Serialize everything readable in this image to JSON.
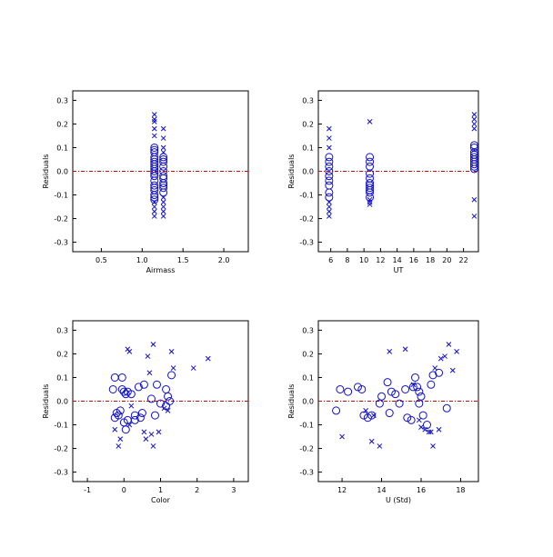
{
  "chart_data": [
    {
      "type": "scatter",
      "title": "",
      "xlabel": "Airmass",
      "ylabel": "Residuals",
      "xlim": [
        0.15,
        2.3
      ],
      "ylim": [
        -0.34,
        0.34
      ],
      "xticks": [
        0.5,
        1.0,
        1.5,
        2.0
      ],
      "xtick_labels": [
        "0.5",
        "1.0",
        "1.5",
        "2.0"
      ],
      "yticks": [
        -0.3,
        -0.2,
        -0.1,
        0.0,
        0.1,
        0.2,
        0.3
      ],
      "ytick_labels": [
        "-0.3",
        "-0.2",
        "-0.1",
        "0.0",
        "0.1",
        "0.2",
        "0.3"
      ],
      "reference_line": 0.0,
      "grid": false,
      "series": [
        {
          "marker": "circle",
          "color": "#1010c8",
          "points": [
            [
              1.15,
              0.1
            ],
            [
              1.15,
              0.09
            ],
            [
              1.15,
              0.08
            ],
            [
              1.15,
              0.06
            ],
            [
              1.15,
              0.05
            ],
            [
              1.15,
              0.04
            ],
            [
              1.15,
              0.03
            ],
            [
              1.15,
              0.02
            ],
            [
              1.15,
              0.01
            ],
            [
              1.15,
              0.0
            ],
            [
              1.15,
              -0.01
            ],
            [
              1.15,
              -0.02
            ],
            [
              1.15,
              -0.04
            ],
            [
              1.15,
              -0.06
            ],
            [
              1.15,
              -0.07
            ],
            [
              1.15,
              -0.08
            ],
            [
              1.15,
              -0.1
            ],
            [
              1.15,
              -0.11
            ],
            [
              1.15,
              -0.12
            ],
            [
              1.26,
              0.06
            ],
            [
              1.26,
              0.05
            ],
            [
              1.26,
              0.04
            ],
            [
              1.26,
              0.02
            ],
            [
              1.26,
              0.0
            ],
            [
              1.26,
              -0.02
            ],
            [
              1.26,
              -0.03
            ],
            [
              1.26,
              -0.05
            ],
            [
              1.26,
              -0.06
            ],
            [
              1.26,
              -0.07
            ],
            [
              1.26,
              -0.09
            ]
          ]
        },
        {
          "marker": "x",
          "color": "#1010c8",
          "points": [
            [
              1.15,
              0.24
            ],
            [
              1.15,
              0.22
            ],
            [
              1.15,
              0.21
            ],
            [
              1.15,
              0.18
            ],
            [
              1.15,
              0.15
            ],
            [
              1.15,
              -0.13
            ],
            [
              1.15,
              -0.15
            ],
            [
              1.15,
              -0.17
            ],
            [
              1.15,
              -0.19
            ],
            [
              1.26,
              0.18
            ],
            [
              1.26,
              0.14
            ],
            [
              1.26,
              0.1
            ],
            [
              1.26,
              0.08
            ],
            [
              1.26,
              -0.11
            ],
            [
              1.26,
              -0.13
            ],
            [
              1.26,
              -0.15
            ],
            [
              1.26,
              -0.17
            ],
            [
              1.26,
              -0.19
            ]
          ]
        }
      ]
    },
    {
      "type": "scatter",
      "title": "",
      "xlabel": "UT",
      "ylabel": "Residuals",
      "xlim": [
        4.5,
        23.8
      ],
      "ylim": [
        -0.34,
        0.34
      ],
      "xticks": [
        6,
        8,
        10,
        12,
        14,
        16,
        18,
        20,
        22
      ],
      "xtick_labels": [
        "6",
        "8",
        "10",
        "12",
        "14",
        "16",
        "18",
        "20",
        "22"
      ],
      "yticks": [
        -0.3,
        -0.2,
        -0.1,
        0.0,
        0.1,
        0.2,
        0.3
      ],
      "ytick_labels": [
        "-0.3",
        "-0.2",
        "-0.1",
        "0.0",
        "0.1",
        "0.2",
        "0.3"
      ],
      "reference_line": 0.0,
      "grid": false,
      "series": [
        {
          "marker": "circle",
          "color": "#1010c8",
          "points": [
            [
              5.8,
              0.06
            ],
            [
              5.8,
              0.04
            ],
            [
              5.8,
              0.02
            ],
            [
              5.8,
              0.0
            ],
            [
              5.8,
              -0.02
            ],
            [
              5.8,
              -0.04
            ],
            [
              5.8,
              -0.06
            ],
            [
              5.8,
              -0.09
            ],
            [
              5.8,
              -0.11
            ],
            [
              10.7,
              0.06
            ],
            [
              10.7,
              0.04
            ],
            [
              10.7,
              0.02
            ],
            [
              10.7,
              -0.01
            ],
            [
              10.7,
              -0.03
            ],
            [
              10.7,
              -0.05
            ],
            [
              10.7,
              -0.06
            ],
            [
              10.7,
              -0.07
            ],
            [
              10.7,
              -0.08
            ],
            [
              10.7,
              -0.09
            ],
            [
              10.7,
              -0.11
            ],
            [
              23.3,
              0.11
            ],
            [
              23.3,
              0.1
            ],
            [
              23.3,
              0.08
            ],
            [
              23.3,
              0.07
            ],
            [
              23.3,
              0.06
            ],
            [
              23.3,
              0.05
            ],
            [
              23.3,
              0.04
            ],
            [
              23.3,
              0.03
            ],
            [
              23.3,
              0.02
            ],
            [
              23.3,
              0.01
            ]
          ]
        },
        {
          "marker": "x",
          "color": "#1010c8",
          "points": [
            [
              5.8,
              0.18
            ],
            [
              5.8,
              0.14
            ],
            [
              5.8,
              0.1
            ],
            [
              5.8,
              -0.13
            ],
            [
              5.8,
              -0.15
            ],
            [
              5.8,
              -0.17
            ],
            [
              5.8,
              -0.19
            ],
            [
              10.7,
              0.21
            ],
            [
              10.7,
              -0.12
            ],
            [
              10.7,
              -0.13
            ],
            [
              10.7,
              -0.14
            ],
            [
              23.3,
              0.24
            ],
            [
              23.3,
              0.22
            ],
            [
              23.3,
              0.2
            ],
            [
              23.3,
              0.18
            ],
            [
              23.3,
              0.09
            ],
            [
              23.3,
              -0.12
            ],
            [
              23.3,
              -0.19
            ]
          ]
        }
      ]
    },
    {
      "type": "scatter",
      "title": "",
      "xlabel": "Color",
      "ylabel": "Residuals",
      "xlim": [
        -1.4,
        3.4
      ],
      "ylim": [
        -0.34,
        0.34
      ],
      "xticks": [
        -1,
        0,
        1,
        2,
        3
      ],
      "xtick_labels": [
        "-1",
        "0",
        "1",
        "2",
        "3"
      ],
      "yticks": [
        -0.3,
        -0.2,
        -0.1,
        0.0,
        0.1,
        0.2,
        0.3
      ],
      "ytick_labels": [
        "-0.3",
        "-0.2",
        "-0.1",
        "0.0",
        "0.1",
        "0.2",
        "0.3"
      ],
      "reference_line": 0.0,
      "grid": false,
      "series": [
        {
          "marker": "circle",
          "color": "#1010c8",
          "points": [
            [
              -0.25,
              0.1
            ],
            [
              -0.3,
              0.05
            ],
            [
              -0.05,
              0.1
            ],
            [
              -0.05,
              0.05
            ],
            [
              0.0,
              0.04
            ],
            [
              0.05,
              0.03
            ],
            [
              0.1,
              0.04
            ],
            [
              0.2,
              0.03
            ],
            [
              -0.2,
              -0.05
            ],
            [
              -0.25,
              -0.07
            ],
            [
              -0.15,
              -0.06
            ],
            [
              0.1,
              -0.08
            ],
            [
              0.0,
              -0.09
            ],
            [
              -0.1,
              -0.04
            ],
            [
              0.3,
              -0.06
            ],
            [
              0.45,
              -0.07
            ],
            [
              0.5,
              -0.05
            ],
            [
              0.4,
              0.06
            ],
            [
              0.55,
              0.07
            ],
            [
              0.75,
              0.01
            ],
            [
              0.85,
              -0.06
            ],
            [
              0.9,
              0.07
            ],
            [
              1.0,
              -0.01
            ],
            [
              1.15,
              -0.02
            ],
            [
              1.2,
              0.02
            ],
            [
              1.15,
              0.05
            ],
            [
              1.25,
              0.0
            ],
            [
              1.3,
              0.11
            ],
            [
              0.05,
              -0.12
            ],
            [
              0.3,
              -0.08
            ]
          ]
        },
        {
          "marker": "x",
          "color": "#1010c8",
          "points": [
            [
              0.1,
              0.22
            ],
            [
              0.15,
              0.21
            ],
            [
              0.8,
              0.24
            ],
            [
              1.3,
              0.21
            ],
            [
              0.65,
              0.19
            ],
            [
              2.3,
              0.18
            ],
            [
              1.9,
              0.14
            ],
            [
              1.35,
              0.14
            ],
            [
              0.7,
              0.12
            ],
            [
              -0.1,
              -0.16
            ],
            [
              -0.15,
              -0.19
            ],
            [
              0.6,
              -0.16
            ],
            [
              0.55,
              -0.13
            ],
            [
              0.8,
              -0.19
            ],
            [
              0.95,
              -0.13
            ],
            [
              -0.25,
              -0.12
            ],
            [
              0.15,
              -0.1
            ],
            [
              1.1,
              -0.03
            ],
            [
              1.2,
              -0.04
            ],
            [
              0.2,
              -0.02
            ],
            [
              0.75,
              -0.14
            ]
          ]
        }
      ]
    },
    {
      "type": "scatter",
      "title": "",
      "xlabel": "U (Std)",
      "ylabel": "Residuals",
      "xlim": [
        10.8,
        18.9
      ],
      "ylim": [
        -0.34,
        0.34
      ],
      "xticks": [
        12,
        14,
        16,
        18
      ],
      "xtick_labels": [
        "12",
        "14",
        "16",
        "18"
      ],
      "yticks": [
        -0.3,
        -0.2,
        -0.1,
        0.0,
        0.1,
        0.2,
        0.3
      ],
      "ytick_labels": [
        "-0.3",
        "-0.2",
        "-0.1",
        "0.0",
        "0.1",
        "0.2",
        "0.3"
      ],
      "reference_line": 0.0,
      "grid": false,
      "series": [
        {
          "marker": "circle",
          "color": "#1010c8",
          "points": [
            [
              11.7,
              -0.04
            ],
            [
              11.9,
              0.05
            ],
            [
              12.3,
              0.04
            ],
            [
              12.8,
              0.06
            ],
            [
              13.0,
              0.05
            ],
            [
              13.1,
              -0.06
            ],
            [
              13.3,
              -0.07
            ],
            [
              13.5,
              -0.06
            ],
            [
              13.9,
              -0.01
            ],
            [
              14.0,
              0.02
            ],
            [
              14.3,
              0.08
            ],
            [
              14.5,
              0.04
            ],
            [
              14.7,
              0.03
            ],
            [
              14.9,
              -0.01
            ],
            [
              15.2,
              0.05
            ],
            [
              15.3,
              -0.07
            ],
            [
              15.5,
              -0.08
            ],
            [
              15.6,
              0.06
            ],
            [
              15.7,
              0.1
            ],
            [
              15.8,
              0.06
            ],
            [
              15.9,
              0.04
            ],
            [
              16.0,
              0.02
            ],
            [
              16.1,
              -0.06
            ],
            [
              16.3,
              -0.1
            ],
            [
              16.5,
              0.07
            ],
            [
              16.6,
              0.11
            ],
            [
              16.9,
              0.12
            ],
            [
              17.3,
              -0.03
            ],
            [
              14.4,
              -0.05
            ],
            [
              15.9,
              -0.01
            ]
          ]
        },
        {
          "marker": "x",
          "color": "#1010c8",
          "points": [
            [
              12.0,
              -0.15
            ],
            [
              13.5,
              -0.17
            ],
            [
              13.9,
              -0.19
            ],
            [
              14.4,
              0.21
            ],
            [
              15.2,
              0.22
            ],
            [
              15.6,
              0.07
            ],
            [
              15.9,
              -0.08
            ],
            [
              16.0,
              -0.11
            ],
            [
              16.2,
              -0.12
            ],
            [
              16.4,
              -0.13
            ],
            [
              16.5,
              -0.13
            ],
            [
              16.6,
              -0.19
            ],
            [
              16.7,
              0.14
            ],
            [
              16.9,
              -0.12
            ],
            [
              17.0,
              0.18
            ],
            [
              17.2,
              0.19
            ],
            [
              17.4,
              0.24
            ],
            [
              17.6,
              0.13
            ],
            [
              17.8,
              0.21
            ],
            [
              13.2,
              -0.04
            ],
            [
              13.6,
              -0.06
            ]
          ]
        }
      ]
    }
  ]
}
